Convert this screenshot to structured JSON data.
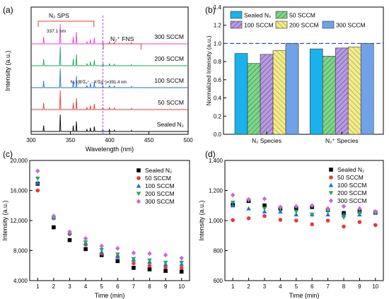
{
  "chart_data": [
    {
      "panel": "(a)",
      "type": "line",
      "xlabel": "Wavelength (nm)",
      "ylabel": "Intensity (a.u.)",
      "xlim": [
        300,
        500
      ],
      "xticks": [
        "300",
        "350",
        "400",
        "450",
        "500"
      ],
      "series": [
        {
          "name": "Sealed N₂",
          "color": "#000000"
        },
        {
          "name": "50 SCCM",
          "color": "#e8383b"
        },
        {
          "name": "100 SCCM",
          "color": "#1f6fd6"
        },
        {
          "name": "200 SCCM",
          "color": "#1fa85a"
        },
        {
          "name": "300 SCCM",
          "color": "#e33ed8"
        }
      ],
      "peaks_nm": [
        315.9,
        337.1,
        353.7,
        357.7,
        371.1,
        375.5,
        380.5,
        391.4,
        399.8,
        405.9,
        427.8
      ],
      "peak_heights": [
        0.35,
        1.0,
        0.35,
        0.6,
        0.12,
        0.22,
        0.3,
        0.12,
        0.12,
        0.08,
        0.06
      ],
      "annotations": {
        "sps_label": "N₂ SPS",
        "sps_range": [
          300,
          380
        ],
        "peak_label": "337.1 nm",
        "fns_label": "N₂⁺ FNS",
        "fns_range": [
          390,
          440
        ],
        "line_label": "N₂⁺(B²Σᵤ⁺→X²Σg⁺)=391.4 nm",
        "line_x": 391.4
      }
    },
    {
      "panel": "(b)",
      "type": "bar",
      "ylabel": "Normalized Intensity (a.u.)",
      "ylim": [
        0.0,
        1.4
      ],
      "yticks": [
        "0.0",
        "0.2",
        "0.4",
        "0.6",
        "0.8",
        "1.0",
        "1.2",
        "1.4"
      ],
      "categories": [
        "N₂ Species",
        "N₂⁺ Species"
      ],
      "reference_line": 1.0,
      "series": [
        {
          "name": "Sealed N₂",
          "values": [
            0.89,
            0.94
          ],
          "color": "#19b2ec",
          "pattern": "solid"
        },
        {
          "name": "50 SCCM",
          "values": [
            0.78,
            0.86
          ],
          "color": "#7fd68a",
          "pattern": "hatch"
        },
        {
          "name": "100 SCCM",
          "values": [
            0.88,
            0.95
          ],
          "color": "#b79be0",
          "pattern": "hatch"
        },
        {
          "name": "200 SCCM",
          "values": [
            0.92,
            0.96
          ],
          "color": "#f2ec8a",
          "pattern": "hatch"
        },
        {
          "name": "300 SCCM",
          "values": [
            1.0,
            1.0
          ],
          "color": "#6fa2e8",
          "pattern": "solid"
        }
      ]
    },
    {
      "panel": "(c)",
      "type": "scatter",
      "xlabel": "Time (min)",
      "ylabel": "Intensity (a.u.)",
      "xlim": [
        0.5,
        10.5
      ],
      "ylim": [
        4000,
        20000
      ],
      "x": [
        1,
        2,
        3,
        4,
        5,
        6,
        7,
        8,
        9,
        10
      ],
      "xticks": [
        "1",
        "2",
        "3",
        "4",
        "5",
        "6",
        "7",
        "8",
        "9",
        "10"
      ],
      "yticks": [
        "4,000",
        "8,000",
        "12,000",
        "16,000",
        "20,000"
      ],
      "series": [
        {
          "name": "Sealed N₂",
          "marker": "square",
          "color": "#000000",
          "values": [
            16900,
            11100,
            9400,
            8200,
            7400,
            6600,
            5700,
            5500,
            5300,
            5200
          ]
        },
        {
          "name": "50 SCCM",
          "marker": "circle",
          "color": "#e8383b",
          "values": [
            16000,
            12300,
            10200,
            8800,
            7600,
            7200,
            6300,
            6000,
            5800,
            5700
          ]
        },
        {
          "name": "100 SCCM",
          "marker": "triangle-up",
          "color": "#1f6fd6",
          "values": [
            17000,
            12400,
            10400,
            9000,
            7800,
            7200,
            6800,
            6500,
            6200,
            6200
          ]
        },
        {
          "name": "200 SCCM",
          "marker": "triangle-down",
          "color": "#1fa85a",
          "values": [
            17600,
            12300,
            10300,
            9100,
            8100,
            7500,
            6900,
            6700,
            6400,
            6400
          ]
        },
        {
          "name": "300 SCCM",
          "marker": "diamond",
          "color": "#c56bd8",
          "values": [
            18600,
            12600,
            10500,
            9600,
            8600,
            8300,
            7700,
            7600,
            7400,
            7000
          ]
        }
      ]
    },
    {
      "panel": "(d)",
      "type": "scatter",
      "xlabel": "Time (min)",
      "ylabel": "Intensity (a.u.)",
      "xlim": [
        0.5,
        10.5
      ],
      "ylim": [
        600,
        1400
      ],
      "x": [
        1,
        2,
        3,
        4,
        5,
        6,
        7,
        8,
        9,
        10
      ],
      "xticks": [
        "1",
        "2",
        "3",
        "4",
        "5",
        "6",
        "7",
        "8",
        "9",
        "10"
      ],
      "yticks": [
        "600",
        "800",
        "1,000",
        "1,200",
        "1,400"
      ],
      "series": [
        {
          "name": "Sealed N₂",
          "marker": "square",
          "color": "#000000",
          "values": [
            1105,
            1130,
            1100,
            1080,
            1080,
            1090,
            1070,
            1050,
            1060,
            1055
          ]
        },
        {
          "name": "50 SCCM",
          "marker": "circle",
          "color": "#e8383b",
          "values": [
            1003,
            1015,
            1030,
            1005,
            1000,
            975,
            1000,
            960,
            990,
            970
          ]
        },
        {
          "name": "100 SCCM",
          "marker": "triangle-up",
          "color": "#1f6fd6",
          "values": [
            1100,
            1080,
            1060,
            1060,
            1040,
            1040,
            1040,
            1040,
            1040,
            1050
          ]
        },
        {
          "name": "200 SCCM",
          "marker": "triangle-down",
          "color": "#1fa85a",
          "values": [
            1120,
            1135,
            1080,
            1080,
            1060,
            1040,
            1060,
            1020,
            1050,
            1050
          ]
        },
        {
          "name": "300 SCCM",
          "marker": "diamond",
          "color": "#c56bd8",
          "values": [
            1170,
            1140,
            1145,
            1090,
            1095,
            1100,
            1080,
            1095,
            1080,
            1060
          ]
        }
      ]
    }
  ]
}
